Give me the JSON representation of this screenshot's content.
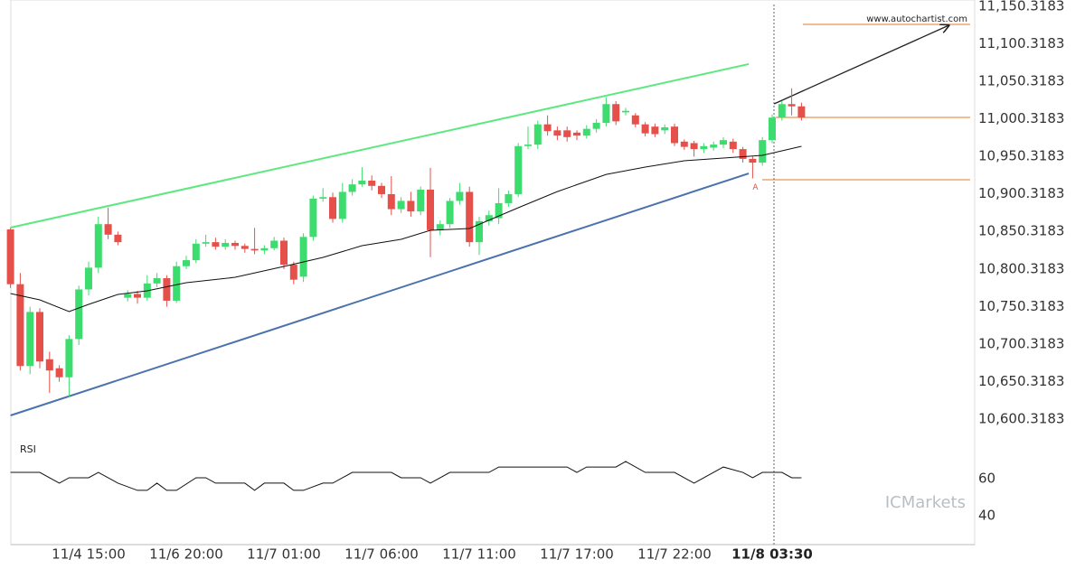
{
  "chart_data": {
    "type": "candlestick",
    "categories": [
      null,
      null,
      null,
      null,
      null,
      null,
      null,
      null,
      "11/4 15:00",
      null,
      null,
      null,
      null,
      null,
      null,
      null,
      null,
      null,
      "11/6 20:00",
      null,
      null,
      null,
      null,
      null,
      null,
      null,
      null,
      null,
      "11/7 01:00",
      null,
      null,
      null,
      null,
      null,
      null,
      null,
      null,
      null,
      "11/7 06:00",
      null,
      null,
      null,
      null,
      null,
      null,
      null,
      null,
      null,
      "11/7 11:00",
      null,
      null,
      null,
      null,
      null,
      null,
      null,
      null,
      null,
      "11/7 17:00",
      null,
      null,
      null,
      null,
      null,
      null,
      null,
      null,
      null,
      "11/7 22:00",
      null,
      null,
      null,
      null,
      null,
      null,
      null,
      null,
      null,
      "11/8 03:30",
      null,
      null,
      null
    ],
    "open": [
      10853,
      10780,
      10671,
      10743,
      10680,
      10668,
      10656,
      10707,
      10773,
      10802,
      10860,
      10846,
      10762,
      10767,
      10762,
      10781,
      10788,
      10758,
      10804,
      10812,
      10834,
      10836,
      10830,
      10835,
      10831,
      10827,
      10825,
      10828,
      10838,
      10806,
      10790,
      10843,
      10894,
      10896,
      10867,
      10903,
      10913,
      10918,
      10911,
      10900,
      10880,
      10891,
      10877,
      10906,
      10852,
      10860,
      10891,
      10903,
      10836,
      10864,
      10868,
      10888,
      10900,
      10964,
      10966,
      10993,
      10985,
      10985,
      10982,
      10978,
      10987,
      10995,
      11020,
      11009,
      11005,
      10993,
      10990,
      10985,
      10990,
      10970,
      10968,
      10960,
      10962,
      10966,
      10970,
      10960,
      10947,
      10942,
      10972,
      11002,
      11020,
      11017
    ],
    "high": [
      10855,
      10795,
      10750,
      10748,
      10690,
      10672,
      10712,
      10778,
      10810,
      10870,
      10882,
      10850,
      10772,
      10771,
      10792,
      10795,
      10792,
      10810,
      10818,
      10840,
      10846,
      10842,
      10840,
      10838,
      10834,
      10855,
      10832,
      10843,
      10842,
      10810,
      10848,
      10898,
      10908,
      10902,
      10915,
      10920,
      10936,
      10925,
      10915,
      10924,
      10896,
      10903,
      10910,
      10935,
      10865,
      10895,
      10915,
      10910,
      10870,
      10878,
      10908,
      10905,
      10968,
      10990,
      10998,
      11005,
      10990,
      10990,
      10985,
      10992,
      11000,
      11029,
      11024,
      11015,
      11008,
      10996,
      10994,
      10993,
      10994,
      10973,
      10971,
      10968,
      10970,
      10976,
      10974,
      10963,
      10950,
      10976,
      11006,
      11024,
      11041,
      11022
    ],
    "low": [
      10775,
      10665,
      10660,
      10668,
      10635,
      10650,
      10629,
      10699,
      10765,
      10795,
      10840,
      10832,
      10757,
      10754,
      10758,
      10776,
      10750,
      10755,
      10800,
      10808,
      10830,
      10826,
      10826,
      10826,
      10822,
      10820,
      10820,
      10825,
      10800,
      10780,
      10783,
      10838,
      10890,
      10862,
      10862,
      10898,
      10910,
      10905,
      10895,
      10872,
      10875,
      10870,
      10872,
      10816,
      10845,
      10855,
      10886,
      10830,
      10819,
      10858,
      10860,
      10883,
      10896,
      10960,
      10960,
      10978,
      10972,
      10970,
      10972,
      10974,
      10982,
      10990,
      10992,
      11005,
      10989,
      10977,
      10976,
      10980,
      10964,
      10959,
      10950,
      10955,
      10958,
      10961,
      10955,
      10942,
      10921,
      10938,
      10968,
      10998,
      11005,
      10998
    ],
    "close": [
      10780,
      10671,
      10743,
      10677,
      10665,
      10656,
      10707,
      10773,
      10802,
      10860,
      10846,
      10836,
      10767,
      10762,
      10781,
      10788,
      10758,
      10804,
      10812,
      10834,
      10836,
      10830,
      10835,
      10831,
      10827,
      10825,
      10828,
      10838,
      10806,
      10786,
      10843,
      10894,
      10896,
      10867,
      10903,
      10913,
      10918,
      10911,
      10900,
      10880,
      10891,
      10877,
      10906,
      10852,
      10860,
      10891,
      10903,
      10836,
      10864,
      10872,
      10888,
      10900,
      10964,
      10966,
      10993,
      10984,
      10978,
      10976,
      10978,
      10987,
      10995,
      11020,
      10997,
      11011,
      10993,
      10981,
      10980,
      10989,
      10968,
      10963,
      10960,
      10964,
      10966,
      10972,
      10960,
      10947,
      10942,
      10972,
      11002,
      11020,
      11017,
      11002
    ],
    "up_color": "#3ddc6e",
    "down_color": "#e5504a",
    "ylim": [
      10571.4,
      11158.7
    ],
    "yticks": [
      {
        "value": 11150.3183,
        "label": "11,150.3183"
      },
      {
        "value": 11100.3183,
        "label": "11,100.3183"
      },
      {
        "value": 11050.3183,
        "label": "11,050.3183"
      },
      {
        "value": 11000.3183,
        "label": "11,000.3183"
      },
      {
        "value": 10950.3183,
        "label": "10,950.3183"
      },
      {
        "value": 10900.3183,
        "label": "10,900.3183"
      },
      {
        "value": 10850.3183,
        "label": "10,850.3183"
      },
      {
        "value": 10800.3183,
        "label": "10,800.3183"
      },
      {
        "value": 10750.3183,
        "label": "10,750.3183"
      },
      {
        "value": 10700.3183,
        "label": "10,700.3183"
      },
      {
        "value": 10650.3183,
        "label": "10,650.3183"
      },
      {
        "value": 10600.3183,
        "label": "10,600.3183"
      }
    ],
    "moving_average": {
      "color": "#111111",
      "x": [
        0,
        3,
        6,
        8,
        11,
        14,
        18,
        23,
        28,
        32,
        36,
        40,
        43,
        47,
        52,
        56,
        61,
        65,
        69,
        73,
        77,
        81
      ],
      "values": [
        10767.6,
        10759.1,
        10743.5,
        10753.1,
        10766.4,
        10771.2,
        10782.0,
        10789.2,
        10803.7,
        10815.7,
        10831.3,
        10839.8,
        10851.8,
        10854.2,
        10881.9,
        10903.4,
        10926.3,
        10936.0,
        10944.5,
        10948.1,
        10951.7,
        10963.7
      ]
    },
    "trendlines": [
      {
        "color": "#5de87f",
        "x": [
          0,
          75.6
        ],
        "values": [
          10855.4,
          11073.3
        ]
      },
      {
        "color": "#4a72ad",
        "x": [
          0,
          75.6
        ],
        "values": [
          10605.1,
          10927.6
        ]
      },
      {
        "color": "#222222",
        "x": [
          78.2,
          96.1
        ],
        "values": [
          11020.3,
          11125.0
        ],
        "arrow": true
      }
    ],
    "levels": [
      {
        "value": 11126.2,
        "color": "#e07b2a"
      },
      {
        "value": 11002.2,
        "color": "#e07b2a"
      },
      {
        "value": 10919.2,
        "color": "#e07b2a"
      }
    ],
    "pattern_label": "A",
    "source": "www.autochartist.com",
    "watermark": "ICMarkets",
    "rsi": {
      "title": "RSI",
      "color": "#111111",
      "ylim": [
        25,
        80
      ],
      "yticks": [
        60,
        40
      ],
      "x": [
        0,
        3,
        5,
        6,
        8,
        9,
        11,
        13,
        14,
        15,
        16,
        17,
        19,
        20,
        21,
        24,
        25,
        26,
        28,
        29,
        30,
        32,
        33,
        35,
        39,
        40,
        42,
        43,
        45,
        49,
        50,
        57,
        58,
        59,
        62,
        63,
        65,
        68,
        70,
        73,
        75,
        76,
        77,
        79,
        80,
        81
      ],
      "values": [
        63.4,
        63.4,
        57.6,
        60.5,
        60.5,
        63.4,
        57.6,
        53.7,
        53.7,
        57.6,
        53.7,
        53.7,
        60.5,
        60.5,
        57.6,
        57.6,
        53.7,
        57.6,
        57.6,
        53.7,
        53.7,
        57.6,
        57.6,
        63.4,
        63.4,
        60.5,
        60.5,
        57.6,
        63.4,
        63.4,
        66.3,
        66.3,
        63.4,
        66.3,
        66.3,
        69.3,
        63.4,
        63.4,
        57.6,
        66.3,
        63.4,
        60.5,
        63.4,
        63.4,
        60.5,
        60.5
      ]
    }
  }
}
